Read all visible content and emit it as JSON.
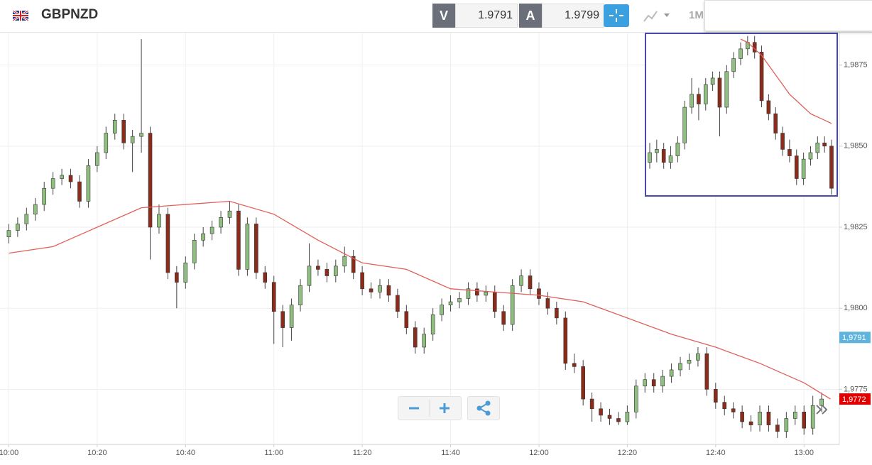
{
  "header": {
    "symbol": "GBPNZD",
    "bid_label": "V",
    "bid": "1.9791",
    "ask_label": "A",
    "ask": "1.9799",
    "period": "1M"
  },
  "chart_data": {
    "type": "candlestick",
    "x": [
      "10:00",
      "10:02",
      "10:04",
      "10:06",
      "10:08",
      "10:10",
      "10:12",
      "10:14",
      "10:16",
      "10:18",
      "10:20",
      "10:22",
      "10:24",
      "10:26",
      "10:28",
      "10:30",
      "10:32",
      "10:34",
      "10:36",
      "10:38",
      "10:40",
      "10:42",
      "10:44",
      "10:46",
      "10:48",
      "10:50",
      "10:52",
      "10:54",
      "10:56",
      "10:58",
      "11:00",
      "11:02",
      "11:04",
      "11:06",
      "11:08",
      "11:10",
      "11:12",
      "11:14",
      "11:16",
      "11:18",
      "11:20",
      "11:22",
      "11:24",
      "11:26",
      "11:28",
      "11:30",
      "11:32",
      "11:34",
      "11:36",
      "11:38",
      "11:40",
      "11:42",
      "11:44",
      "11:46",
      "11:48",
      "11:50",
      "11:52",
      "11:54",
      "11:56",
      "11:58",
      "12:00",
      "12:02",
      "12:04",
      "12:06",
      "12:08",
      "12:10",
      "12:12",
      "12:14",
      "12:16",
      "12:18",
      "12:20",
      "12:22",
      "12:24",
      "12:26",
      "12:28",
      "12:30",
      "12:32",
      "12:34",
      "12:36",
      "12:38",
      "12:40",
      "12:42",
      "12:44",
      "12:46",
      "12:48",
      "12:50",
      "12:52",
      "12:54",
      "12:56",
      "12:58",
      "13:00",
      "13:02",
      "13:04"
    ],
    "open": [
      1.9822,
      1.9824,
      1.9826,
      1.9829,
      1.9832,
      1.9837,
      1.984,
      1.9841,
      1.9839,
      1.9833,
      1.9844,
      1.9848,
      1.9854,
      1.9858,
      1.9851,
      1.9853,
      1.9854,
      1.9825,
      1.9829,
      1.9811,
      1.9808,
      1.9814,
      1.9821,
      1.9823,
      1.9825,
      1.9828,
      1.983,
      1.9812,
      1.9826,
      1.9811,
      1.9808,
      1.9799,
      1.9794,
      1.9801,
      1.9807,
      1.9813,
      1.9812,
      1.981,
      1.9813,
      1.9816,
      1.9811,
      1.9806,
      1.9805,
      1.9807,
      1.9804,
      1.9799,
      1.9794,
      1.9788,
      1.9792,
      1.9798,
      1.9801,
      1.9802,
      1.9803,
      1.9806,
      1.9804,
      1.9805,
      1.9799,
      1.9795,
      1.9807,
      1.981,
      1.9806,
      1.9803,
      1.98,
      1.9797,
      1.9783,
      1.9782,
      1.9772,
      1.9769,
      1.9767,
      1.9766,
      1.9765,
      1.9768,
      1.9776,
      1.9778,
      1.9776,
      1.9779,
      1.9781,
      1.9783,
      1.9784,
      1.9786,
      1.9775,
      1.9771,
      1.9769,
      1.9768,
      1.9765,
      1.9764,
      1.9768,
      1.9764,
      1.9762,
      1.9766,
      1.9768,
      1.9763,
      1.977
    ],
    "high": [
      1.9826,
      1.9828,
      1.9831,
      1.9834,
      1.9839,
      1.9842,
      1.9843,
      1.9843,
      1.9841,
      1.9846,
      1.985,
      1.9856,
      1.986,
      1.986,
      1.9855,
      1.9883,
      1.9856,
      1.9832,
      1.9831,
      1.9813,
      1.9816,
      1.9823,
      1.9825,
      1.9827,
      1.983,
      1.9833,
      1.9832,
      1.9828,
      1.9828,
      1.9813,
      1.981,
      1.9801,
      1.9803,
      1.9809,
      1.982,
      1.9815,
      1.9814,
      1.9815,
      1.9819,
      1.9818,
      1.9813,
      1.9808,
      1.9809,
      1.9809,
      1.9806,
      1.9801,
      1.9796,
      1.9794,
      1.98,
      1.9803,
      1.9804,
      1.9805,
      1.9808,
      1.9808,
      1.9807,
      1.9807,
      1.9801,
      1.9809,
      1.9812,
      1.9812,
      1.9808,
      1.9805,
      1.9802,
      1.9799,
      1.9786,
      1.9784,
      1.9774,
      1.9771,
      1.9769,
      1.9768,
      1.977,
      1.9778,
      1.978,
      1.978,
      1.9781,
      1.9783,
      1.9785,
      1.9786,
      1.9788,
      1.9788,
      1.9777,
      1.9773,
      1.9771,
      1.977,
      1.9767,
      1.977,
      1.977,
      1.9766,
      1.9768,
      1.977,
      1.977,
      1.9773,
      1.9774
    ],
    "low": [
      1.982,
      1.9822,
      1.9824,
      1.9827,
      1.983,
      1.9835,
      1.9838,
      1.9837,
      1.9831,
      1.9831,
      1.9842,
      1.9846,
      1.9852,
      1.9849,
      1.9842,
      1.9848,
      1.9815,
      1.9823,
      1.9809,
      1.98,
      1.9806,
      1.9812,
      1.9819,
      1.9821,
      1.9823,
      1.9826,
      1.981,
      1.981,
      1.9809,
      1.9806,
      1.9789,
      1.9788,
      1.979,
      1.9799,
      1.9805,
      1.981,
      1.9808,
      1.9808,
      1.9811,
      1.9809,
      1.9804,
      1.9803,
      1.9803,
      1.9802,
      1.9797,
      1.9792,
      1.9786,
      1.9786,
      1.979,
      1.9796,
      1.9799,
      1.98,
      1.9801,
      1.9802,
      1.9802,
      1.9797,
      1.9793,
      1.9793,
      1.9805,
      1.9804,
      1.9801,
      1.9798,
      1.9795,
      1.9781,
      1.978,
      1.977,
      1.9765,
      1.9765,
      1.9764,
      1.9764,
      1.9764,
      1.9766,
      1.9774,
      1.9774,
      1.9774,
      1.9777,
      1.9779,
      1.9781,
      1.9782,
      1.9773,
      1.9769,
      1.9767,
      1.9766,
      1.9763,
      1.9762,
      1.9762,
      1.9762,
      1.976,
      1.976,
      1.9764,
      1.9761,
      1.9761,
      1.9768
    ],
    "close": [
      1.9824,
      1.9826,
      1.9829,
      1.9832,
      1.9837,
      1.984,
      1.9841,
      1.9839,
      1.9833,
      1.9844,
      1.9848,
      1.9854,
      1.9858,
      1.9851,
      1.9853,
      1.9854,
      1.9825,
      1.9829,
      1.9811,
      1.9808,
      1.9814,
      1.9821,
      1.9823,
      1.9825,
      1.9828,
      1.983,
      1.9812,
      1.9826,
      1.9811,
      1.9808,
      1.9799,
      1.9794,
      1.9801,
      1.9807,
      1.9813,
      1.9812,
      1.981,
      1.9813,
      1.9816,
      1.9811,
      1.9806,
      1.9805,
      1.9807,
      1.9804,
      1.9799,
      1.9794,
      1.9788,
      1.9792,
      1.9798,
      1.9801,
      1.9802,
      1.9803,
      1.9806,
      1.9804,
      1.9805,
      1.9799,
      1.9795,
      1.9807,
      1.981,
      1.9806,
      1.9803,
      1.98,
      1.9797,
      1.9783,
      1.9782,
      1.9772,
      1.9769,
      1.9767,
      1.9766,
      1.9765,
      1.9768,
      1.9776,
      1.9778,
      1.9776,
      1.9779,
      1.9781,
      1.9783,
      1.9784,
      1.9786,
      1.9775,
      1.9771,
      1.9769,
      1.9768,
      1.9765,
      1.9764,
      1.9768,
      1.9764,
      1.9762,
      1.9766,
      1.9768,
      1.9763,
      1.977,
      1.9772
    ],
    "up_color": "#8fbf7f",
    "down_color": "#8b2c1b",
    "ma_x": [
      "10:00",
      "10:10",
      "10:20",
      "10:30",
      "10:50",
      "11:00",
      "11:10",
      "11:20",
      "11:30",
      "11:40",
      "11:50",
      "12:00",
      "12:10",
      "12:20",
      "12:30",
      "12:40",
      "12:50",
      "13:00",
      "13:06"
    ],
    "ma_values": [
      1.9817,
      1.9819,
      1.9825,
      1.9831,
      1.9833,
      1.9829,
      1.9821,
      1.9814,
      1.9812,
      1.9806,
      1.9805,
      1.9804,
      1.9802,
      1.9797,
      1.9792,
      1.9788,
      1.9783,
      1.9777,
      1.9772
    ],
    "ma_color": "#e0605a",
    "xlim": [
      "09:58",
      "13:08"
    ],
    "xticks": [
      "10:00",
      "10:20",
      "10:40",
      "11:00",
      "11:20",
      "11:40",
      "12:00",
      "12:20",
      "12:40",
      "13:00"
    ],
    "ylim": [
      1.9758,
      1.9885
    ],
    "yticks": [
      {
        "value": 1.9775,
        "label": "1,9775"
      },
      {
        "value": 1.98,
        "label": "1,9800"
      },
      {
        "value": 1.9825,
        "label": "1,9825"
      },
      {
        "value": 1.985,
        "label": "1,9850"
      },
      {
        "value": 1.9875,
        "label": "1,9875"
      }
    ],
    "grid": true,
    "price_tags": [
      {
        "value": 1.9791,
        "label": "1,9791",
        "color": "#5fb3dd"
      },
      {
        "value": 1.9772,
        "label": "1,9772",
        "color": "#e00000"
      }
    ],
    "inset": {
      "open": [
        1.9845,
        1.9848,
        1.9849,
        1.9845,
        1.9847,
        1.9851,
        1.9862,
        1.9866,
        1.9863,
        1.9869,
        1.9871,
        1.9862,
        1.9873,
        1.9877,
        1.988,
        1.9882,
        1.9879,
        1.9864,
        1.986,
        1.9854,
        1.9849,
        1.9847,
        1.984,
        1.9846,
        1.9848,
        1.9851,
        1.985
      ],
      "high": [
        1.9851,
        1.9852,
        1.9851,
        1.985,
        1.9853,
        1.9864,
        1.9871,
        1.9868,
        1.9871,
        1.9873,
        1.9873,
        1.9875,
        1.9879,
        1.9882,
        1.9884,
        1.9884,
        1.9881,
        1.9866,
        1.9862,
        1.9856,
        1.9852,
        1.9849,
        1.9848,
        1.985,
        1.9853,
        1.9853,
        1.9852
      ],
      "low": [
        1.9843,
        1.9845,
        1.9843,
        1.9843,
        1.9845,
        1.9849,
        1.986,
        1.9858,
        1.9861,
        1.9867,
        1.9853,
        1.986,
        1.9871,
        1.9875,
        1.9878,
        1.9877,
        1.9862,
        1.9858,
        1.9852,
        1.9847,
        1.9845,
        1.9838,
        1.9838,
        1.9844,
        1.9846,
        1.9848,
        1.9835
      ],
      "close": [
        1.9848,
        1.9849,
        1.9845,
        1.9847,
        1.9851,
        1.9862,
        1.9866,
        1.9863,
        1.9869,
        1.9871,
        1.9862,
        1.9873,
        1.9877,
        1.988,
        1.9882,
        1.9879,
        1.9864,
        1.986,
        1.9854,
        1.9849,
        1.9847,
        1.984,
        1.9846,
        1.9848,
        1.9851,
        1.985,
        1.9837
      ],
      "ma": [
        null,
        null,
        null,
        null,
        null,
        null,
        null,
        null,
        null,
        null,
        null,
        null,
        null,
        1.9883,
        1.9882,
        1.988,
        1.9878,
        1.9875,
        1.9872,
        1.9869,
        1.9866,
        1.9864,
        1.9862,
        1.986,
        1.9859,
        1.9858,
        1.9857
      ]
    }
  }
}
